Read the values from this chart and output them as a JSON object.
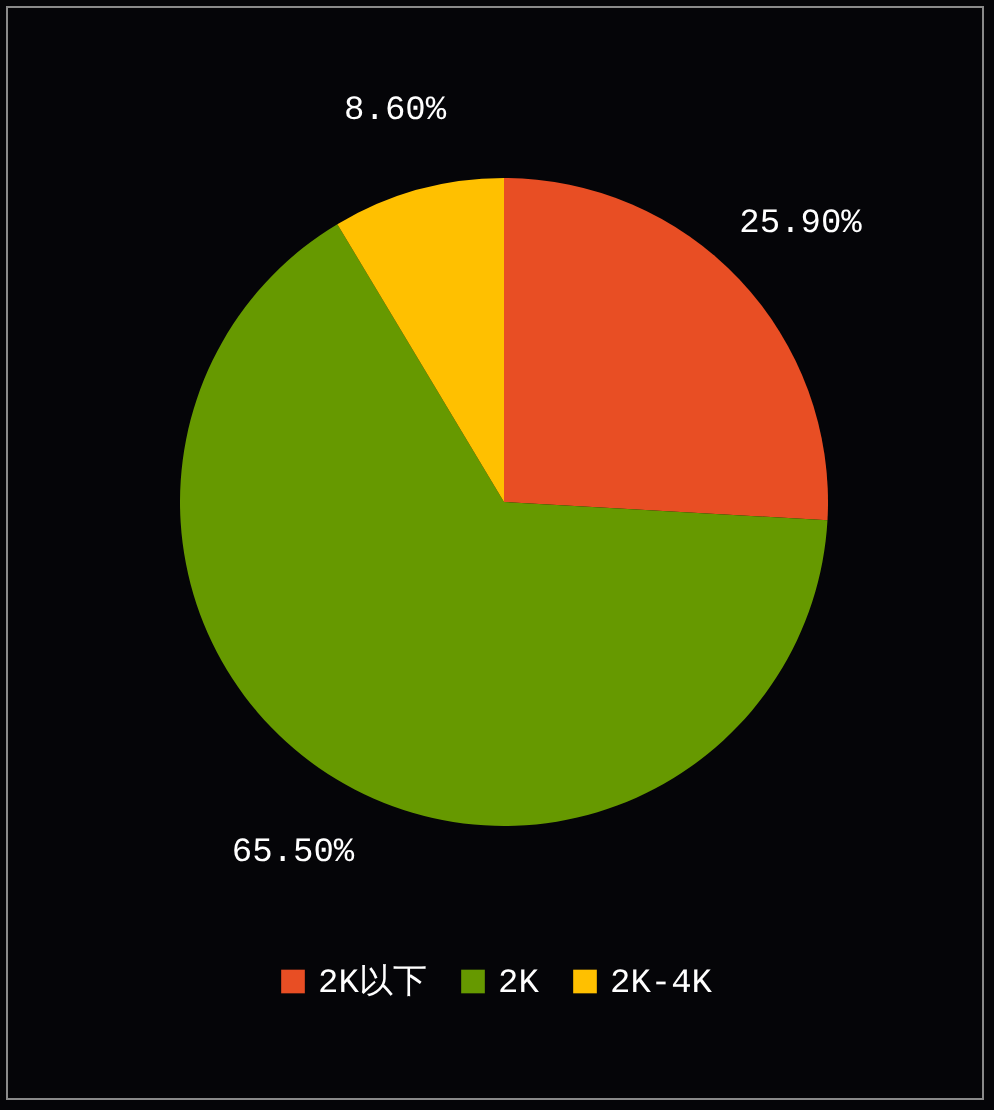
{
  "chart_data": {
    "type": "pie",
    "categories": [
      "2K以下",
      "2K",
      "2K-4K"
    ],
    "values": [
      25.9,
      65.5,
      8.6
    ],
    "colors": [
      "#e84e24",
      "#669900",
      "#ffc000"
    ],
    "value_labels": [
      "25.90%",
      "65.50%",
      "8.60%"
    ],
    "legend": "bottom"
  }
}
